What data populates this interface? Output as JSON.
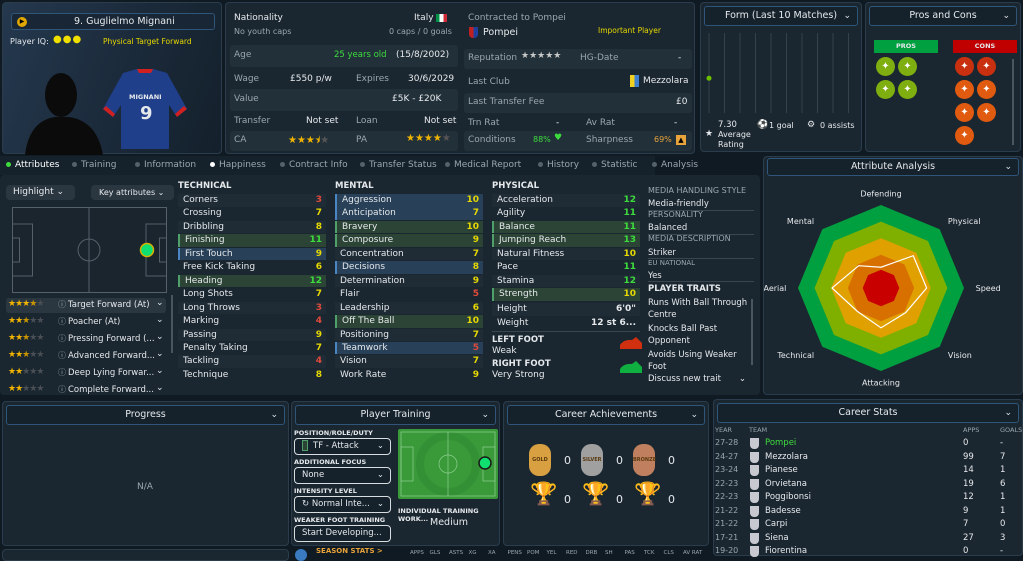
{
  "player": {
    "name": "9. Guglielmo Mignani",
    "iq_label": "Player IQ:",
    "iq_dots": 3,
    "role_tag": "Physical  Target Forward",
    "shirt_name": "MIGNANI",
    "shirt_number": "9"
  },
  "info": {
    "nationality_label": "Nationality",
    "nationality": "Italy",
    "youth_caps": "No youth caps",
    "caps": "0 caps / 0 goals",
    "age_label": "Age",
    "age": "25 years old",
    "dob": "(15/8/2002)",
    "wage_label": "Wage",
    "wage": "£550 p/w",
    "expires_label": "Expires",
    "expires": "30/6/2029",
    "value_label": "Value",
    "value": "£5K - £20K",
    "transfer_label": "Transfer",
    "transfer": "Not set",
    "loan_label": "Loan",
    "loan": "Not set",
    "ca_label": "CA",
    "ca_stars": 3.5,
    "pa_label": "PA",
    "pa_stars": 4
  },
  "contract": {
    "title": "Contracted to Pompei",
    "club": "Pompei",
    "status": "Important Player",
    "reputation_label": "Reputation",
    "reputation_stars": 5,
    "hg_label": "HG-Date",
    "hg": "-",
    "last_club_label": "Last Club",
    "last_club": "Mezzolara",
    "fee_label": "Last Transfer Fee",
    "fee": "£0",
    "trn_label": "Trn Rat",
    "trn": "-",
    "av_label": "Av Rat",
    "av": "-",
    "conditions_label": "Conditions",
    "conditions": "88%",
    "sharpness_label": "Sharpness",
    "sharpness": "69%"
  },
  "form": {
    "title": "Form (Last 10 Matches)",
    "rating": "7.30",
    "rating_label": "Average Rating",
    "goals": "1 goal",
    "assists": "0 assists",
    "points": [
      7.3
    ]
  },
  "pros_cons": {
    "title": "Pros and Cons",
    "pros_label": "PROS",
    "cons_label": "CONS",
    "pros": [
      "trending-up-icon",
      "brain-icon",
      "link-icon",
      "spring-icon"
    ],
    "cons": [
      "syringe-icon",
      "star-icon",
      "broken-link-icon",
      "target-icon",
      "flask-icon",
      "arrows-icon",
      "cone-icon"
    ],
    "pros_color": "#00a040",
    "cons_color": "#c00000"
  },
  "tabs": [
    {
      "label": "Attributes",
      "active": true
    },
    {
      "label": "Training"
    },
    {
      "label": "Information"
    },
    {
      "label": "Happiness"
    },
    {
      "label": "Contract Info"
    },
    {
      "label": "Transfer Status"
    },
    {
      "label": "Medical Report"
    },
    {
      "label": "History"
    },
    {
      "label": "Statistic"
    },
    {
      "label": "Analysis"
    }
  ],
  "controls": {
    "highlight": "Highlight",
    "key_attributes": "Key attributes"
  },
  "roles": [
    {
      "name": "Target Forward (At)",
      "stars": 3.5
    },
    {
      "name": "Poacher (At)",
      "stars": 2.5
    },
    {
      "name": "Pressing Forward (...",
      "stars": 2.5
    },
    {
      "name": "Advanced Forward...",
      "stars": 2.5
    },
    {
      "name": "Deep Lying Forwar...",
      "stars": 2
    },
    {
      "name": "Complete Forward...",
      "stars": 2
    }
  ],
  "technical": {
    "title": "TECHNICAL",
    "items": [
      [
        "Corners",
        3,
        ""
      ],
      [
        "Crossing",
        7,
        ""
      ],
      [
        "Dribbling",
        8,
        ""
      ],
      [
        "Finishing",
        11,
        "g"
      ],
      [
        "First Touch",
        9,
        "b"
      ],
      [
        "Free Kick Taking",
        6,
        ""
      ],
      [
        "Heading",
        12,
        "g"
      ],
      [
        "Long Shots",
        7,
        ""
      ],
      [
        "Long Throws",
        3,
        ""
      ],
      [
        "Marking",
        4,
        ""
      ],
      [
        "Passing",
        9,
        ""
      ],
      [
        "Penalty Taking",
        7,
        ""
      ],
      [
        "Tackling",
        4,
        ""
      ],
      [
        "Technique",
        8,
        ""
      ]
    ]
  },
  "mental": {
    "title": "MENTAL",
    "items": [
      [
        "Aggression",
        10,
        "b"
      ],
      [
        "Anticipation",
        7,
        "b"
      ],
      [
        "Bravery",
        10,
        "g"
      ],
      [
        "Composure",
        9,
        "g"
      ],
      [
        "Concentration",
        7,
        ""
      ],
      [
        "Decisions",
        8,
        "b"
      ],
      [
        "Determination",
        9,
        ""
      ],
      [
        "Flair",
        5,
        ""
      ],
      [
        "Leadership",
        6,
        ""
      ],
      [
        "Off The Ball",
        10,
        "g"
      ],
      [
        "Positioning",
        7,
        ""
      ],
      [
        "Teamwork",
        5,
        "b"
      ],
      [
        "Vision",
        7,
        ""
      ],
      [
        "Work Rate",
        9,
        ""
      ]
    ]
  },
  "physical": {
    "title": "PHYSICAL",
    "items": [
      [
        "Acceleration",
        12,
        ""
      ],
      [
        "Agility",
        11,
        ""
      ],
      [
        "Balance",
        11,
        "g"
      ],
      [
        "Jumping Reach",
        13,
        "g"
      ],
      [
        "Natural Fitness",
        10,
        ""
      ],
      [
        "Pace",
        11,
        ""
      ],
      [
        "Stamina",
        12,
        ""
      ],
      [
        "Strength",
        10,
        "g"
      ]
    ],
    "height_label": "Height",
    "height": "6'0\"",
    "weight_label": "Weight",
    "weight": "12 st 6...",
    "left_foot_label": "LEFT FOOT",
    "left_foot": "Weak",
    "right_foot_label": "RIGHT FOOT",
    "right_foot": "Very Strong"
  },
  "profile": {
    "media_label": "MEDIA HANDLING STYLE",
    "media": "Media-friendly",
    "personality_label": "PERSONALITY",
    "personality": "Balanced",
    "desc_label": "MEDIA DESCRIPTION",
    "desc": "Striker",
    "eu_label": "EU NATIONAL",
    "eu": "Yes",
    "traits_label": "PLAYER TRAITS",
    "traits": [
      "Runs With Ball Through Centre",
      "Knocks Ball Past Opponent",
      "Avoids Using Weaker Foot"
    ],
    "discuss": "Discuss new trait"
  },
  "analysis": {
    "title": "Attribute Analysis",
    "axes": [
      "Defending",
      "Physical",
      "Speed",
      "Vision",
      "Attacking",
      "Technical",
      "Aerial",
      "Mental"
    ],
    "values": [
      0.25,
      0.55,
      0.55,
      0.42,
      0.48,
      0.4,
      0.59,
      0.38
    ],
    "ring_colors": [
      "#00a040",
      "#7fb000",
      "#e0a000",
      "#d87000",
      "#c80000"
    ]
  },
  "progress": {
    "title": "Progress",
    "value": "N/A"
  },
  "training": {
    "title": "Player Training",
    "pos_label": "POSITION/ROLE/DUTY",
    "pos": "TF - Attack",
    "focus_label": "ADDITIONAL FOCUS",
    "focus": "None",
    "intensity_label": "INTENSITY LEVEL",
    "intensity": "Normal Inte...",
    "weak_label": "WEAKER FOOT TRAINING",
    "weak": "Start Developing...",
    "workload_label": "INDIVIDUAL TRAINING WORK...",
    "workload": "Medium"
  },
  "achievements": {
    "title": "Career Achievements",
    "medals": [
      {
        "label": "GOLD",
        "count": "0"
      },
      {
        "label": "SILVER",
        "count": "0"
      },
      {
        "label": "BRONZE",
        "count": "0"
      }
    ],
    "trophies": [
      "0",
      "0",
      "0"
    ]
  },
  "career": {
    "title": "Career Stats",
    "headers": [
      "YEAR",
      "TEAM",
      "APPS",
      "GOALS"
    ],
    "rows": [
      [
        "27-28",
        "Pompei",
        "0",
        "-"
      ],
      [
        "24-27",
        "Mezzolara",
        "99",
        "7"
      ],
      [
        "23-24",
        "Pianese",
        "14",
        "1"
      ],
      [
        "22-23",
        "Orvietana",
        "19",
        "6"
      ],
      [
        "22-23",
        "Poggibonsi",
        "12",
        "1"
      ],
      [
        "21-22",
        "Badesse",
        "9",
        "1"
      ],
      [
        "21-22",
        "Carpi",
        "7",
        "0"
      ],
      [
        "17-21",
        "Siena",
        "27",
        "3"
      ],
      [
        "19-20",
        "Fiorentina",
        "0",
        "-"
      ]
    ]
  },
  "season": {
    "title": "SEASON STATS >",
    "headers": [
      "APPS",
      "GLS",
      "ASTS",
      "XG",
      "XA",
      "PENS",
      "POM",
      "YEL",
      "RED",
      "DRB",
      "SH",
      "PAS",
      "TCK",
      "CLS",
      "AV RAT"
    ]
  }
}
